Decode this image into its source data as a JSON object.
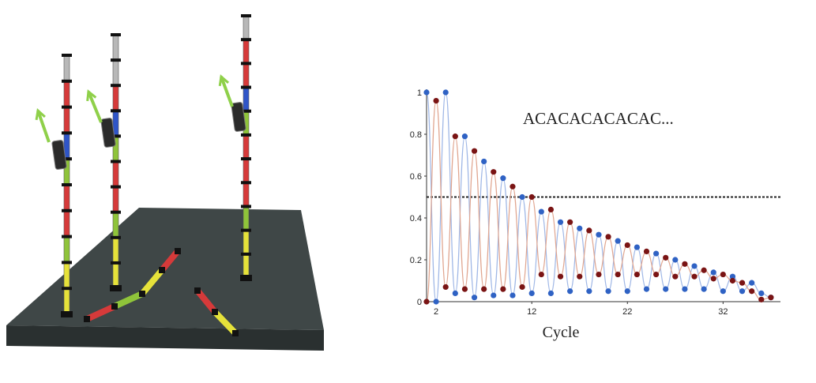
{
  "illustration": {
    "description_icons": [
      "dna-strand-icon",
      "polymerase-icon",
      "arrow-icon"
    ],
    "colors": {
      "surface": "#3f4747",
      "surface_edge": "#2a3030",
      "red": "#d63a3a",
      "green": "#8fc43a",
      "yellow": "#e6e23a",
      "blue": "#2f55c8",
      "grey": "#b8b8b8",
      "arrow": "#8fd04a",
      "node": "#111111"
    }
  },
  "chart_data": {
    "type": "line",
    "title": "",
    "annotation": "ACACACACACAC...",
    "xlabel": "Cycle",
    "ylabel": "",
    "xlim": [
      1,
      38
    ],
    "ylim": [
      0,
      1
    ],
    "x_ticks": [
      2,
      12,
      22,
      32
    ],
    "y_ticks": [
      0,
      0.2,
      0.4,
      0.6,
      0.8,
      1
    ],
    "y_tick_labels": [
      "0",
      "0.2",
      "0.4",
      "0.6",
      "0.8",
      "1"
    ],
    "reference_line": {
      "y": 0.5,
      "style": "dashed"
    },
    "grid": false,
    "series": [
      {
        "color": "#2f62c4",
        "line_color": "#9fb7e6",
        "x": [
          1,
          2,
          3,
          4,
          5,
          6,
          7,
          8,
          9,
          10,
          11,
          12,
          13,
          14,
          15,
          16,
          17,
          18,
          19,
          20,
          21,
          22,
          23,
          24,
          25,
          26,
          27,
          28,
          29,
          30,
          31,
          32,
          33,
          34,
          35,
          36,
          37
        ],
        "y": [
          1.0,
          0.0,
          1.0,
          0.04,
          0.79,
          0.02,
          0.67,
          0.03,
          0.59,
          0.03,
          0.5,
          0.04,
          0.43,
          0.04,
          0.38,
          0.05,
          0.35,
          0.05,
          0.32,
          0.05,
          0.29,
          0.05,
          0.26,
          0.06,
          0.23,
          0.06,
          0.2,
          0.06,
          0.17,
          0.06,
          0.14,
          0.05,
          0.12,
          0.05,
          0.09,
          0.04,
          0.02
        ]
      },
      {
        "color": "#7a1414",
        "line_color": "#e0a58f",
        "x": [
          1,
          2,
          3,
          4,
          5,
          6,
          7,
          8,
          9,
          10,
          11,
          12,
          13,
          14,
          15,
          16,
          17,
          18,
          19,
          20,
          21,
          22,
          23,
          24,
          25,
          26,
          27,
          28,
          29,
          30,
          31,
          32,
          33,
          34,
          35,
          36,
          37
        ],
        "y": [
          0.0,
          0.96,
          0.07,
          0.79,
          0.06,
          0.72,
          0.06,
          0.62,
          0.06,
          0.55,
          0.07,
          0.5,
          0.13,
          0.44,
          0.12,
          0.38,
          0.12,
          0.34,
          0.13,
          0.31,
          0.13,
          0.27,
          0.13,
          0.24,
          0.13,
          0.21,
          0.12,
          0.18,
          0.12,
          0.15,
          0.11,
          0.13,
          0.1,
          0.09,
          0.05,
          0.01,
          0.02
        ]
      }
    ]
  }
}
